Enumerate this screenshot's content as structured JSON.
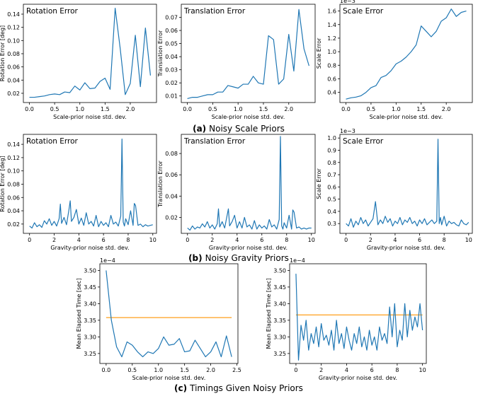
{
  "colors": {
    "line": "#1f77b4",
    "baseline": "#ff9f1c",
    "axis": "#000000"
  },
  "captions": [
    {
      "letter": "(a)",
      "text": "Noisy Scale Priors"
    },
    {
      "letter": "(b)",
      "text": "Noisy Gravity Priors"
    },
    {
      "letter": "(c)",
      "text": "Timings Given Noisy Priors"
    }
  ],
  "chart_data": [
    {
      "type": "line",
      "title": "Rotation Error",
      "xlabel": "Scale-prior noise std. dev.",
      "ylabel": "Rotation Error [deg]",
      "xlim": [
        -0.12,
        2.52
      ],
      "ylim": [
        0.006,
        0.155
      ],
      "xticks": [
        0.0,
        0.5,
        1.0,
        1.5,
        2.0
      ],
      "xticklabels": [
        "0.0",
        "0.5",
        "1.0",
        "1.5",
        "2.0"
      ],
      "yticks": [
        0.02,
        0.04,
        0.06,
        0.08,
        0.1,
        0.12,
        0.14
      ],
      "yticklabels": [
        "0.02",
        "0.04",
        "0.06",
        "0.08",
        "0.10",
        "0.12",
        "0.14"
      ],
      "series": [
        {
          "x": [
            0.0,
            0.1,
            0.2,
            0.3,
            0.4,
            0.5,
            0.6,
            0.7,
            0.8,
            0.9,
            1.0,
            1.1,
            1.2,
            1.3,
            1.4,
            1.5,
            1.6,
            1.7,
            1.8,
            1.9,
            2.0,
            2.1,
            2.2,
            2.3,
            2.4
          ],
          "y": [
            0.014,
            0.014,
            0.015,
            0.016,
            0.018,
            0.019,
            0.018,
            0.022,
            0.021,
            0.031,
            0.025,
            0.036,
            0.027,
            0.028,
            0.038,
            0.043,
            0.026,
            0.149,
            0.088,
            0.018,
            0.035,
            0.108,
            0.03,
            0.119,
            0.047
          ]
        }
      ]
    },
    {
      "type": "line",
      "title": "Translation Error",
      "xlabel": "Scale-prior noise std. dev.",
      "ylabel": "Translation Error",
      "xlim": [
        -0.12,
        2.52
      ],
      "ylim": [
        0.005,
        0.08
      ],
      "xticks": [
        0.0,
        0.5,
        1.0,
        1.5,
        2.0
      ],
      "xticklabels": [
        "0.0",
        "0.5",
        "1.0",
        "1.5",
        "2.0"
      ],
      "yticks": [
        0.01,
        0.02,
        0.03,
        0.04,
        0.05,
        0.06,
        0.07
      ],
      "yticklabels": [
        "0.01",
        "0.02",
        "0.03",
        "0.04",
        "0.05",
        "0.06",
        "0.07"
      ],
      "series": [
        {
          "x": [
            0.0,
            0.1,
            0.2,
            0.3,
            0.4,
            0.5,
            0.6,
            0.7,
            0.8,
            0.9,
            1.0,
            1.1,
            1.2,
            1.3,
            1.4,
            1.5,
            1.6,
            1.7,
            1.8,
            1.9,
            2.0,
            2.1,
            2.2,
            2.3,
            2.4
          ],
          "y": [
            0.008,
            0.009,
            0.009,
            0.01,
            0.011,
            0.011,
            0.013,
            0.013,
            0.018,
            0.017,
            0.016,
            0.019,
            0.019,
            0.025,
            0.02,
            0.019,
            0.056,
            0.053,
            0.019,
            0.023,
            0.057,
            0.029,
            0.076,
            0.046,
            0.033
          ]
        }
      ]
    },
    {
      "type": "line",
      "title": "Scale Error",
      "xlabel": "Scale-prior noise std. dev.",
      "ylabel": "Scale Error",
      "offset_label": "1e−3",
      "xlim": [
        -0.12,
        2.52
      ],
      "ylim": [
        0.00025,
        0.0017
      ],
      "xticks": [
        0.0,
        0.5,
        1.0,
        1.5,
        2.0
      ],
      "xticklabels": [
        "0.0",
        "0.5",
        "1.0",
        "1.5",
        "2.0"
      ],
      "yticks": [
        0.0004,
        0.0006,
        0.0008,
        0.001,
        0.0012,
        0.0014,
        0.0016
      ],
      "yticklabels": [
        "0.4",
        "0.6",
        "0.8",
        "1.0",
        "1.2",
        "1.4",
        "1.6"
      ],
      "series": [
        {
          "x": [
            0.0,
            0.1,
            0.2,
            0.3,
            0.4,
            0.5,
            0.6,
            0.7,
            0.8,
            0.9,
            1.0,
            1.1,
            1.2,
            1.3,
            1.4,
            1.5,
            1.6,
            1.7,
            1.8,
            1.9,
            2.0,
            2.1,
            2.2,
            2.3,
            2.4
          ],
          "y": [
            0.0003,
            0.00032,
            0.00033,
            0.00035,
            0.0004,
            0.00047,
            0.0005,
            0.00062,
            0.00065,
            0.00072,
            0.00082,
            0.00086,
            0.00092,
            0.001,
            0.0011,
            0.00138,
            0.0013,
            0.00122,
            0.0013,
            0.00145,
            0.0015,
            0.00163,
            0.00152,
            0.00158,
            0.0016
          ]
        }
      ]
    },
    {
      "type": "line",
      "title": "Rotation Error",
      "xlabel": "Gravity-prior noise std. dev.",
      "ylabel": "Rotation Error [deg]",
      "xlim": [
        -0.5,
        10.3
      ],
      "ylim": [
        0.006,
        0.155
      ],
      "xticks": [
        0,
        2,
        4,
        6,
        8,
        10
      ],
      "xticklabels": [
        "0",
        "2",
        "4",
        "6",
        "8",
        "10"
      ],
      "yticks": [
        0.02,
        0.04,
        0.06,
        0.08,
        0.1,
        0.12,
        0.14
      ],
      "yticklabels": [
        "0.02",
        "0.04",
        "0.06",
        "0.08",
        "0.10",
        "0.12",
        "0.14"
      ],
      "series": [
        {
          "x": [
            0.0,
            0.2,
            0.4,
            0.6,
            0.8,
            1.0,
            1.2,
            1.4,
            1.6,
            1.8,
            2.0,
            2.2,
            2.4,
            2.5,
            2.6,
            2.8,
            3.0,
            3.2,
            3.3,
            3.4,
            3.6,
            3.8,
            4.0,
            4.2,
            4.4,
            4.6,
            4.8,
            5.0,
            5.2,
            5.4,
            5.6,
            5.8,
            6.0,
            6.2,
            6.4,
            6.6,
            6.8,
            7.0,
            7.2,
            7.4,
            7.5,
            7.6,
            7.7,
            7.8,
            8.0,
            8.2,
            8.4,
            8.5,
            8.6,
            8.8,
            9.0,
            9.2,
            9.4,
            9.6,
            9.8,
            10.0
          ],
          "y": [
            0.017,
            0.014,
            0.022,
            0.016,
            0.019,
            0.015,
            0.025,
            0.02,
            0.028,
            0.018,
            0.024,
            0.017,
            0.028,
            0.05,
            0.021,
            0.03,
            0.019,
            0.042,
            0.055,
            0.024,
            0.03,
            0.042,
            0.02,
            0.029,
            0.018,
            0.037,
            0.02,
            0.024,
            0.017,
            0.033,
            0.016,
            0.024,
            0.018,
            0.022,
            0.016,
            0.033,
            0.02,
            0.023,
            0.017,
            0.032,
            0.148,
            0.023,
            0.017,
            0.028,
            0.019,
            0.04,
            0.018,
            0.051,
            0.048,
            0.018,
            0.02,
            0.016,
            0.019,
            0.017,
            0.018,
            0.019
          ]
        }
      ]
    },
    {
      "type": "line",
      "title": "Translation Error",
      "xlabel": "Gravity-prior noise std. dev.",
      "ylabel": "Translation Error",
      "xlim": [
        -0.5,
        10.3
      ],
      "ylim": [
        0.005,
        0.098
      ],
      "xticks": [
        0,
        2,
        4,
        6,
        8,
        10
      ],
      "xticklabels": [
        "0",
        "2",
        "4",
        "6",
        "8",
        "10"
      ],
      "yticks": [
        0.02,
        0.04,
        0.06,
        0.08
      ],
      "yticklabels": [
        "0.02",
        "0.04",
        "0.06",
        "0.08"
      ],
      "series": [
        {
          "x": [
            0.0,
            0.2,
            0.4,
            0.6,
            0.8,
            1.0,
            1.2,
            1.4,
            1.6,
            1.8,
            2.0,
            2.2,
            2.4,
            2.5,
            2.6,
            2.8,
            3.0,
            3.2,
            3.3,
            3.4,
            3.6,
            3.8,
            4.0,
            4.2,
            4.4,
            4.6,
            4.8,
            5.0,
            5.2,
            5.4,
            5.6,
            5.8,
            6.0,
            6.2,
            6.4,
            6.6,
            6.8,
            7.0,
            7.2,
            7.4,
            7.5,
            7.6,
            7.7,
            7.8,
            8.0,
            8.2,
            8.4,
            8.5,
            8.6,
            8.8,
            9.0,
            9.2,
            9.4,
            9.6,
            9.8,
            10.0
          ],
          "y": [
            0.01,
            0.008,
            0.012,
            0.009,
            0.011,
            0.01,
            0.014,
            0.011,
            0.016,
            0.01,
            0.013,
            0.009,
            0.014,
            0.028,
            0.011,
            0.016,
            0.01,
            0.022,
            0.028,
            0.012,
            0.016,
            0.022,
            0.01,
            0.016,
            0.01,
            0.02,
            0.011,
            0.013,
            0.009,
            0.017,
            0.009,
            0.013,
            0.01,
            0.012,
            0.009,
            0.018,
            0.011,
            0.013,
            0.009,
            0.018,
            0.096,
            0.012,
            0.009,
            0.015,
            0.01,
            0.022,
            0.009,
            0.027,
            0.025,
            0.01,
            0.011,
            0.009,
            0.01,
            0.009,
            0.01,
            0.01
          ]
        }
      ]
    },
    {
      "type": "line",
      "title": "Scale Error",
      "xlabel": "Gravity-prior noise std. dev.",
      "ylabel": "Scale Error",
      "offset_label": "1e−3",
      "xlim": [
        -0.5,
        10.3
      ],
      "ylim": [
        0.00022,
        0.00103
      ],
      "xticks": [
        0,
        2,
        4,
        6,
        8,
        10
      ],
      "xticklabels": [
        "0",
        "2",
        "4",
        "6",
        "8",
        "10"
      ],
      "yticks": [
        0.0003,
        0.0004,
        0.0005,
        0.0006,
        0.0007,
        0.0008,
        0.0009,
        0.001
      ],
      "yticklabels": [
        "0.3",
        "0.4",
        "0.5",
        "0.6",
        "0.7",
        "0.8",
        "0.9",
        "1.0"
      ],
      "series": [
        {
          "x": [
            0.0,
            0.2,
            0.4,
            0.6,
            0.8,
            1.0,
            1.2,
            1.4,
            1.6,
            1.8,
            2.0,
            2.2,
            2.4,
            2.6,
            2.8,
            3.0,
            3.2,
            3.4,
            3.6,
            3.8,
            4.0,
            4.2,
            4.4,
            4.6,
            4.8,
            5.0,
            5.2,
            5.4,
            5.6,
            5.8,
            6.0,
            6.2,
            6.4,
            6.6,
            6.8,
            7.0,
            7.2,
            7.4,
            7.5,
            7.6,
            7.7,
            7.8,
            8.0,
            8.2,
            8.4,
            8.6,
            8.8,
            9.0,
            9.2,
            9.4,
            9.6,
            9.8,
            10.0
          ],
          "y": [
            0.0003,
            0.00028,
            0.00034,
            0.00027,
            0.00032,
            0.00029,
            0.00035,
            0.0003,
            0.00033,
            0.00028,
            0.00031,
            0.00034,
            0.00048,
            0.00029,
            0.00033,
            0.0003,
            0.00036,
            0.00031,
            0.00034,
            0.00028,
            0.00032,
            0.0003,
            0.00035,
            0.00029,
            0.00033,
            0.00031,
            0.00035,
            0.0003,
            0.00032,
            0.00028,
            0.00033,
            0.0003,
            0.00034,
            0.00029,
            0.00031,
            0.00033,
            0.0003,
            0.00032,
            0.00099,
            0.0003,
            0.00035,
            0.00029,
            0.00036,
            0.00028,
            0.00032,
            0.0003,
            0.00031,
            0.00029,
            0.00028,
            0.00033,
            0.0003,
            0.00029,
            0.00031
          ]
        }
      ]
    },
    {
      "type": "line",
      "title": "",
      "xlabel": "Scale-prior noise std. dev.",
      "ylabel": "Mean Elapsed Time [sec]",
      "offset_label": "1e−4",
      "xlim": [
        -0.12,
        2.52
      ],
      "ylim": [
        0.000322,
        0.000352
      ],
      "xticks": [
        0.0,
        0.5,
        1.0,
        1.5,
        2.0,
        2.5
      ],
      "xticklabels": [
        "0.0",
        "0.5",
        "1.0",
        "1.5",
        "2.0",
        "2.5"
      ],
      "yticks": [
        0.000325,
        0.00033,
        0.000335,
        0.00034,
        0.000345,
        0.00035
      ],
      "yticklabels": [
        "3.25",
        "3.30",
        "3.35",
        "3.40",
        "3.45",
        "3.50"
      ],
      "baseline": 0.0003358,
      "series": [
        {
          "x": [
            0.0,
            0.1,
            0.2,
            0.3,
            0.4,
            0.5,
            0.6,
            0.7,
            0.8,
            0.9,
            1.0,
            1.1,
            1.2,
            1.3,
            1.4,
            1.5,
            1.6,
            1.7,
            1.8,
            1.9,
            2.0,
            2.1,
            2.2,
            2.3,
            2.4
          ],
          "y": [
            0.00035,
            0.000335,
            0.000327,
            0.000324,
            0.0003285,
            0.0003275,
            0.0003255,
            0.000324,
            0.0003255,
            0.000325,
            0.0003265,
            0.00033,
            0.0003275,
            0.0003278,
            0.0003295,
            0.0003255,
            0.0003258,
            0.000329,
            0.0003265,
            0.000324,
            0.0003255,
            0.0003285,
            0.000324,
            0.0003303,
            0.000324
          ]
        }
      ]
    },
    {
      "type": "line",
      "title": "",
      "xlabel": "Gravity-prior noise std. dev.",
      "ylabel": "Mean Elapsed Time [sec]",
      "offset_label": "1e−4",
      "xlim": [
        -0.5,
        10.3
      ],
      "ylim": [
        0.000322,
        0.000352
      ],
      "xticks": [
        0,
        2,
        4,
        6,
        8,
        10
      ],
      "xticklabels": [
        "0",
        "2",
        "4",
        "6",
        "8",
        "10"
      ],
      "yticks": [
        0.000325,
        0.00033,
        0.000335,
        0.00034,
        0.000345,
        0.00035
      ],
      "yticklabels": [
        "3.25",
        "3.30",
        "3.35",
        "3.40",
        "3.45",
        "3.50"
      ],
      "baseline": 0.0003366,
      "series": [
        {
          "x": [
            0.0,
            0.2,
            0.4,
            0.6,
            0.8,
            1.0,
            1.2,
            1.4,
            1.6,
            1.8,
            2.0,
            2.2,
            2.4,
            2.6,
            2.8,
            3.0,
            3.2,
            3.4,
            3.6,
            3.8,
            4.0,
            4.2,
            4.4,
            4.6,
            4.8,
            5.0,
            5.2,
            5.4,
            5.6,
            5.8,
            6.0,
            6.2,
            6.4,
            6.6,
            6.8,
            7.0,
            7.2,
            7.4,
            7.6,
            7.8,
            8.0,
            8.2,
            8.4,
            8.6,
            8.8,
            9.0,
            9.2,
            9.4,
            9.6,
            9.8,
            10.0
          ],
          "y": [
            0.000349,
            0.000323,
            0.0003335,
            0.000329,
            0.000335,
            0.000326,
            0.000331,
            0.000328,
            0.000333,
            0.000327,
            0.000334,
            0.000329,
            0.0003305,
            0.0003275,
            0.000332,
            0.000326,
            0.000335,
            0.000328,
            0.000331,
            0.0003265,
            0.000333,
            0.000329,
            0.000326,
            0.000331,
            0.000328,
            0.000333,
            0.000327,
            0.00033,
            0.000326,
            0.000332,
            0.0003275,
            0.00033,
            0.000326,
            0.000333,
            0.000329,
            0.000331,
            0.000328,
            0.000339,
            0.00033,
            0.00034,
            0.000327,
            0.000332,
            0.000329,
            0.00034,
            0.00033,
            0.000338,
            0.000332,
            0.000336,
            0.000333,
            0.00034,
            0.000332
          ]
        }
      ]
    }
  ]
}
